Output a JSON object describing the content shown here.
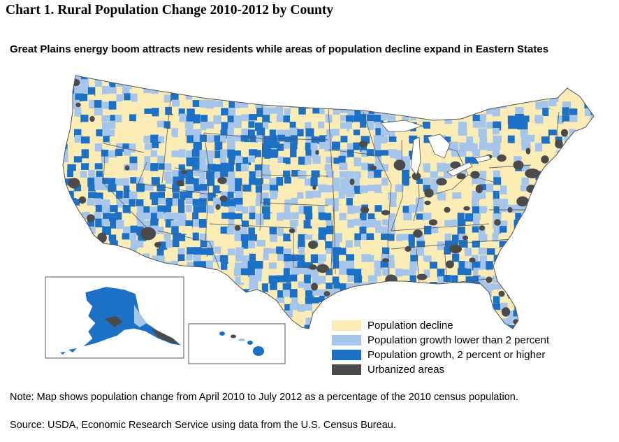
{
  "title": "Chart 1.  Rural Population Change 2010-2012 by County",
  "subtitle": "Great Plains energy boom attracts new residents while areas of population decline expand in Eastern States",
  "legend": [
    {
      "label": "Population decline",
      "color": "#fbecb6"
    },
    {
      "label": "Population growth lower than 2 percent",
      "color": "#a6c5ea"
    },
    {
      "label": "Population growth, 2 percent or higher",
      "color": "#1c70c6"
    },
    {
      "label": "Urbanized areas",
      "color": "#4b4b4b"
    }
  ],
  "note": "Note: Map shows population change from April 2010 to July 2012 as a percentage of the 2010 census population.",
  "source": "Source: USDA, Economic Research Service using data from the U.S. Census Bureau."
}
